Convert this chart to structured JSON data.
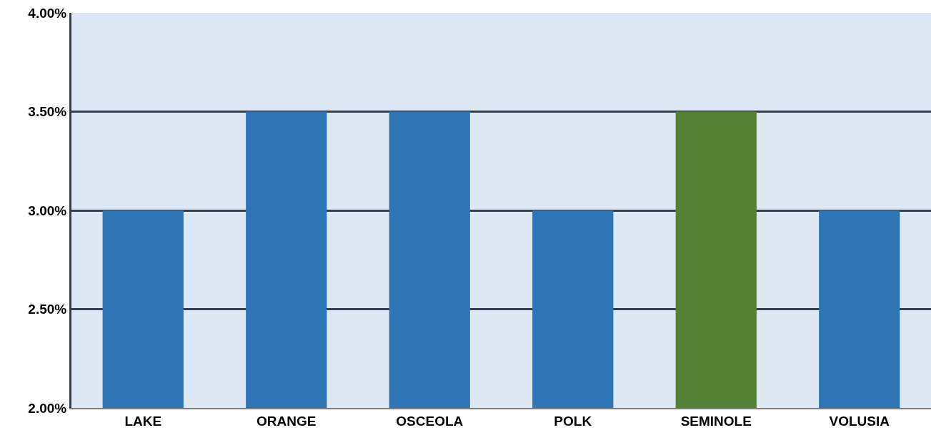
{
  "chart_data": {
    "type": "bar",
    "categories": [
      "LAKE",
      "ORANGE",
      "OSCEOLA",
      "POLK",
      "SEMINOLE",
      "VOLUSIA"
    ],
    "values": [
      3.0,
      3.5,
      3.5,
      3.0,
      3.5,
      3.0
    ],
    "colors": [
      "#2e75b6",
      "#2e75b6",
      "#2e75b6",
      "#2e75b6",
      "#548235",
      "#2e75b6"
    ],
    "ylim": [
      2,
      4
    ],
    "yticks": [
      {
        "value": 2,
        "label": "2.00%"
      },
      {
        "value": 2.5,
        "label": "2.50%"
      },
      {
        "value": 3,
        "label": "3.00%"
      },
      {
        "value": 3.5,
        "label": "3.50%"
      },
      {
        "value": 4,
        "label": "4.00%"
      }
    ],
    "grid": "y"
  }
}
